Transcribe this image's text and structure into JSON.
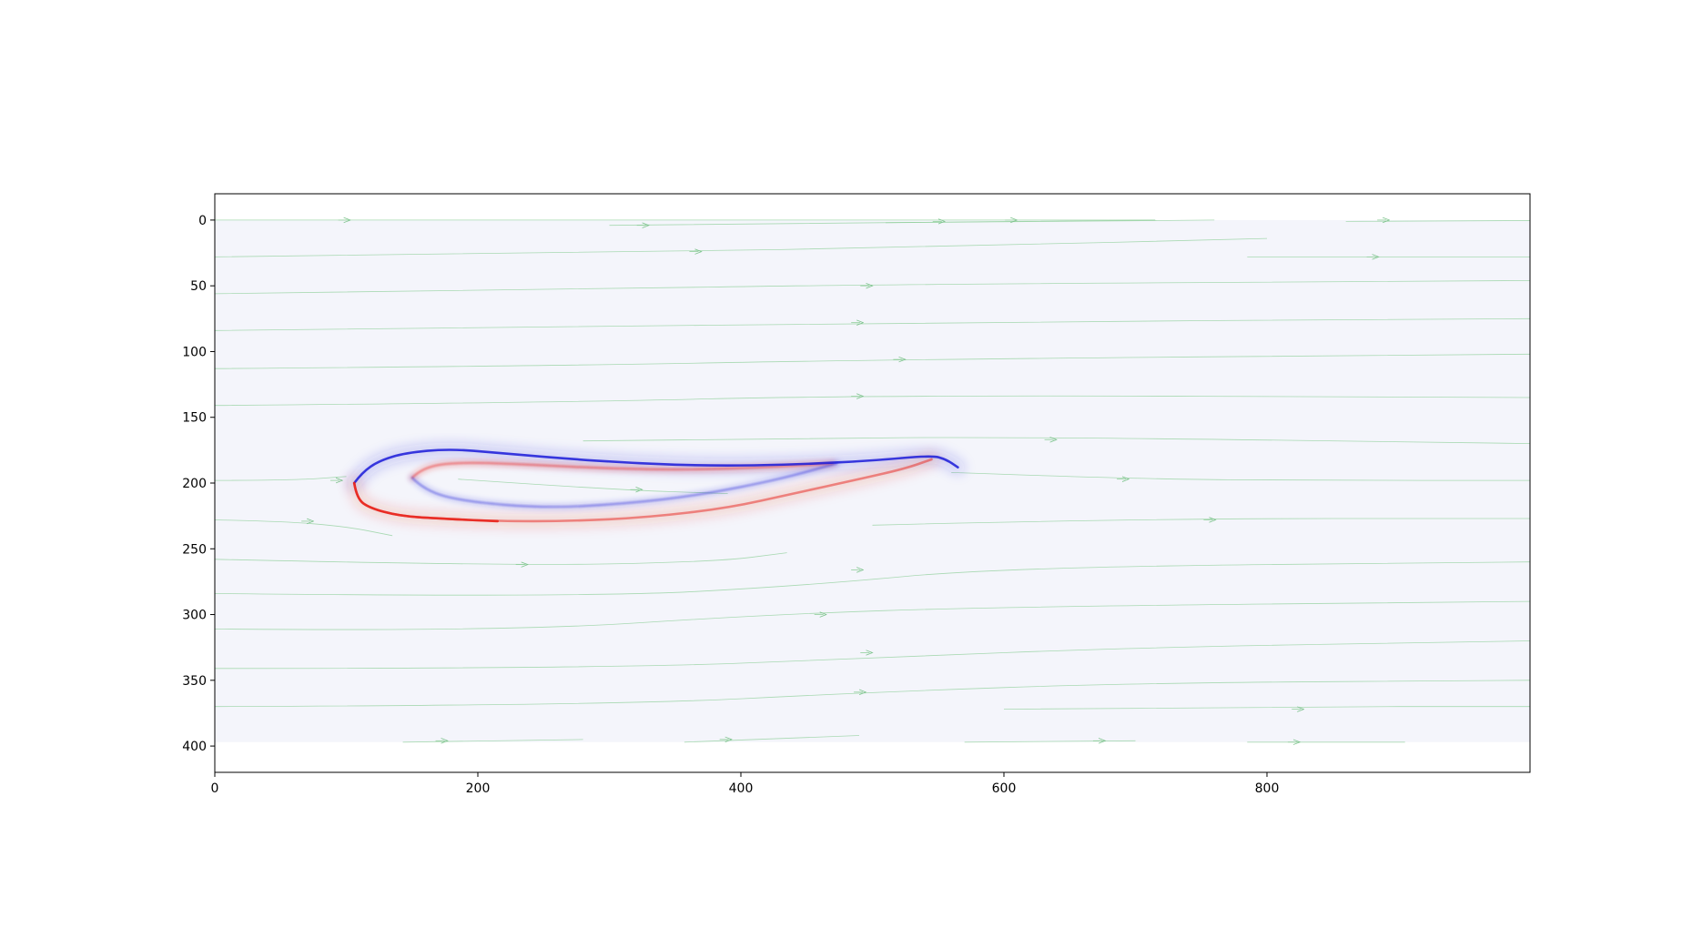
{
  "chart_data": {
    "type": "heatmap",
    "title": "",
    "xlabel": "",
    "ylabel": "",
    "xlim": [
      0,
      1000
    ],
    "ylim": [
      420,
      -20
    ],
    "y_inverted": true,
    "grid": false,
    "x_ticks": [
      0,
      200,
      400,
      600,
      800
    ],
    "x_tick_labels": [
      "0",
      "200",
      "400",
      "600",
      "800"
    ],
    "y_ticks": [
      0,
      50,
      100,
      150,
      200,
      250,
      300,
      350,
      400
    ],
    "y_tick_labels": [
      "0",
      "50",
      "100",
      "150",
      "200",
      "250",
      "300",
      "350",
      "400"
    ],
    "field_extent": {
      "x": [
        0,
        1000
      ],
      "y": [
        0,
        397
      ]
    },
    "colormap": "bwr",
    "colors": {
      "background_field": "#f4f5fb",
      "positive": "#e8231c",
      "negative": "#1a1ad8",
      "streamline": "#8fcf9a"
    },
    "airfoil": {
      "upper_surface": [
        [
          106,
          200
        ],
        [
          112,
          192
        ],
        [
          125,
          183
        ],
        [
          145,
          177
        ],
        [
          178,
          174
        ],
        [
          215,
          177
        ],
        [
          260,
          181
        ],
        [
          320,
          185
        ],
        [
          380,
          187
        ],
        [
          440,
          186
        ],
        [
          500,
          183
        ],
        [
          545,
          179
        ],
        [
          556,
          182
        ],
        [
          565,
          188
        ]
      ],
      "lower_surface": [
        [
          106,
          200
        ],
        [
          108,
          212
        ],
        [
          118,
          219
        ],
        [
          140,
          225
        ],
        [
          170,
          227
        ],
        [
          215,
          229
        ],
        [
          270,
          229
        ],
        [
          330,
          226
        ],
        [
          390,
          219
        ],
        [
          440,
          208
        ],
        [
          490,
          197
        ],
        [
          525,
          189
        ],
        [
          545,
          182
        ]
      ],
      "inner_upper": [
        [
          150,
          196
        ],
        [
          158,
          188
        ],
        [
          185,
          184
        ],
        [
          240,
          186
        ],
        [
          300,
          189
        ],
        [
          360,
          190
        ],
        [
          420,
          188
        ],
        [
          470,
          185
        ]
      ],
      "inner_lower": [
        [
          150,
          196
        ],
        [
          160,
          206
        ],
        [
          190,
          214
        ],
        [
          250,
          219
        ],
        [
          310,
          216
        ],
        [
          370,
          209
        ],
        [
          430,
          197
        ],
        [
          473,
          185
        ]
      ]
    },
    "streamlines": [
      {
        "x": [
          0,
          215,
          440,
          715
        ],
        "y": [
          0,
          0,
          0,
          0
        ]
      },
      {
        "x": [
          300,
          500,
          715
        ],
        "y": [
          4,
          2,
          0
        ]
      },
      {
        "x": [
          510,
          650,
          760
        ],
        "y": [
          2,
          1,
          0
        ]
      },
      {
        "x": [
          860,
          1000,
          1150
        ],
        "y": [
          1,
          0,
          0
        ]
      },
      {
        "x": [
          0,
          300,
          560,
          800
        ],
        "y": [
          28,
          25,
          20,
          14
        ]
      },
      {
        "x": [
          785,
          900,
          1000
        ],
        "y": [
          28,
          28,
          28
        ]
      },
      {
        "x": [
          0,
          250,
          500,
          1000
        ],
        "y": [
          56,
          53,
          49,
          46
        ]
      },
      {
        "x": [
          0,
          250,
          500,
          1000
        ],
        "y": [
          84,
          82,
          78,
          75
        ]
      },
      {
        "x": [
          0,
          250,
          520,
          1000
        ],
        "y": [
          113,
          111,
          106,
          102
        ]
      },
      {
        "x": [
          0,
          250,
          500,
          1000
        ],
        "y": [
          141,
          139,
          133,
          135
        ]
      },
      {
        "x": [
          280,
          420,
          630,
          1000
        ],
        "y": [
          168,
          166,
          165,
          170
        ]
      },
      {
        "x": [
          0,
          60,
          100
        ],
        "y": [
          198,
          198,
          195
        ]
      },
      {
        "x": [
          560,
          700,
          840,
          1000
        ],
        "y": [
          192,
          197,
          198,
          198
        ]
      },
      {
        "x": [
          185,
          300,
          390
        ],
        "y": [
          197,
          205,
          208
        ]
      },
      {
        "x": [
          0,
          50,
          100,
          135
        ],
        "y": [
          228,
          229,
          233,
          240
        ]
      },
      {
        "x": [
          500,
          700,
          1000
        ],
        "y": [
          232,
          227,
          227
        ]
      },
      {
        "x": [
          0,
          220,
          380,
          435
        ],
        "y": [
          258,
          263,
          260,
          253
        ]
      },
      {
        "x": [
          0,
          280,
          450,
          600,
          1000
        ],
        "y": [
          284,
          287,
          278,
          264,
          260
        ]
      },
      {
        "x": [
          0,
          220,
          420,
          600,
          1000
        ],
        "y": [
          311,
          313,
          300,
          294,
          290
        ]
      },
      {
        "x": [
          0,
          300,
          500,
          700,
          1000
        ],
        "y": [
          341,
          341,
          333,
          325,
          320
        ]
      },
      {
        "x": [
          0,
          300,
          500,
          700,
          1000
        ],
        "y": [
          370,
          369,
          359,
          352,
          350
        ]
      },
      {
        "x": [
          600,
          800,
          1000
        ],
        "y": [
          372,
          370,
          370
        ]
      },
      {
        "x": [
          143,
          280
        ],
        "y": [
          397,
          395
        ]
      },
      {
        "x": [
          357,
          490
        ],
        "y": [
          397,
          392
        ]
      },
      {
        "x": [
          570,
          700
        ],
        "y": [
          397,
          396
        ]
      },
      {
        "x": [
          785,
          905
        ],
        "y": [
          397,
          397
        ]
      }
    ],
    "arrow_positions": [
      [
        98,
        0
      ],
      [
        325,
        4
      ],
      [
        365,
        24
      ],
      [
        550,
        1
      ],
      [
        605,
        0
      ],
      [
        888,
        0
      ],
      [
        880,
        28
      ],
      [
        495,
        50
      ],
      [
        488,
        78
      ],
      [
        520,
        106
      ],
      [
        488,
        134
      ],
      [
        635,
        167
      ],
      [
        92,
        198
      ],
      [
        690,
        197
      ],
      [
        320,
        205
      ],
      [
        70,
        229
      ],
      [
        756,
        228
      ],
      [
        233,
        262
      ],
      [
        488,
        266
      ],
      [
        460,
        300
      ],
      [
        495,
        329
      ],
      [
        490,
        359
      ],
      [
        823,
        372
      ],
      [
        172,
        396
      ],
      [
        388,
        395
      ],
      [
        672,
        396
      ],
      [
        820,
        397
      ]
    ]
  }
}
